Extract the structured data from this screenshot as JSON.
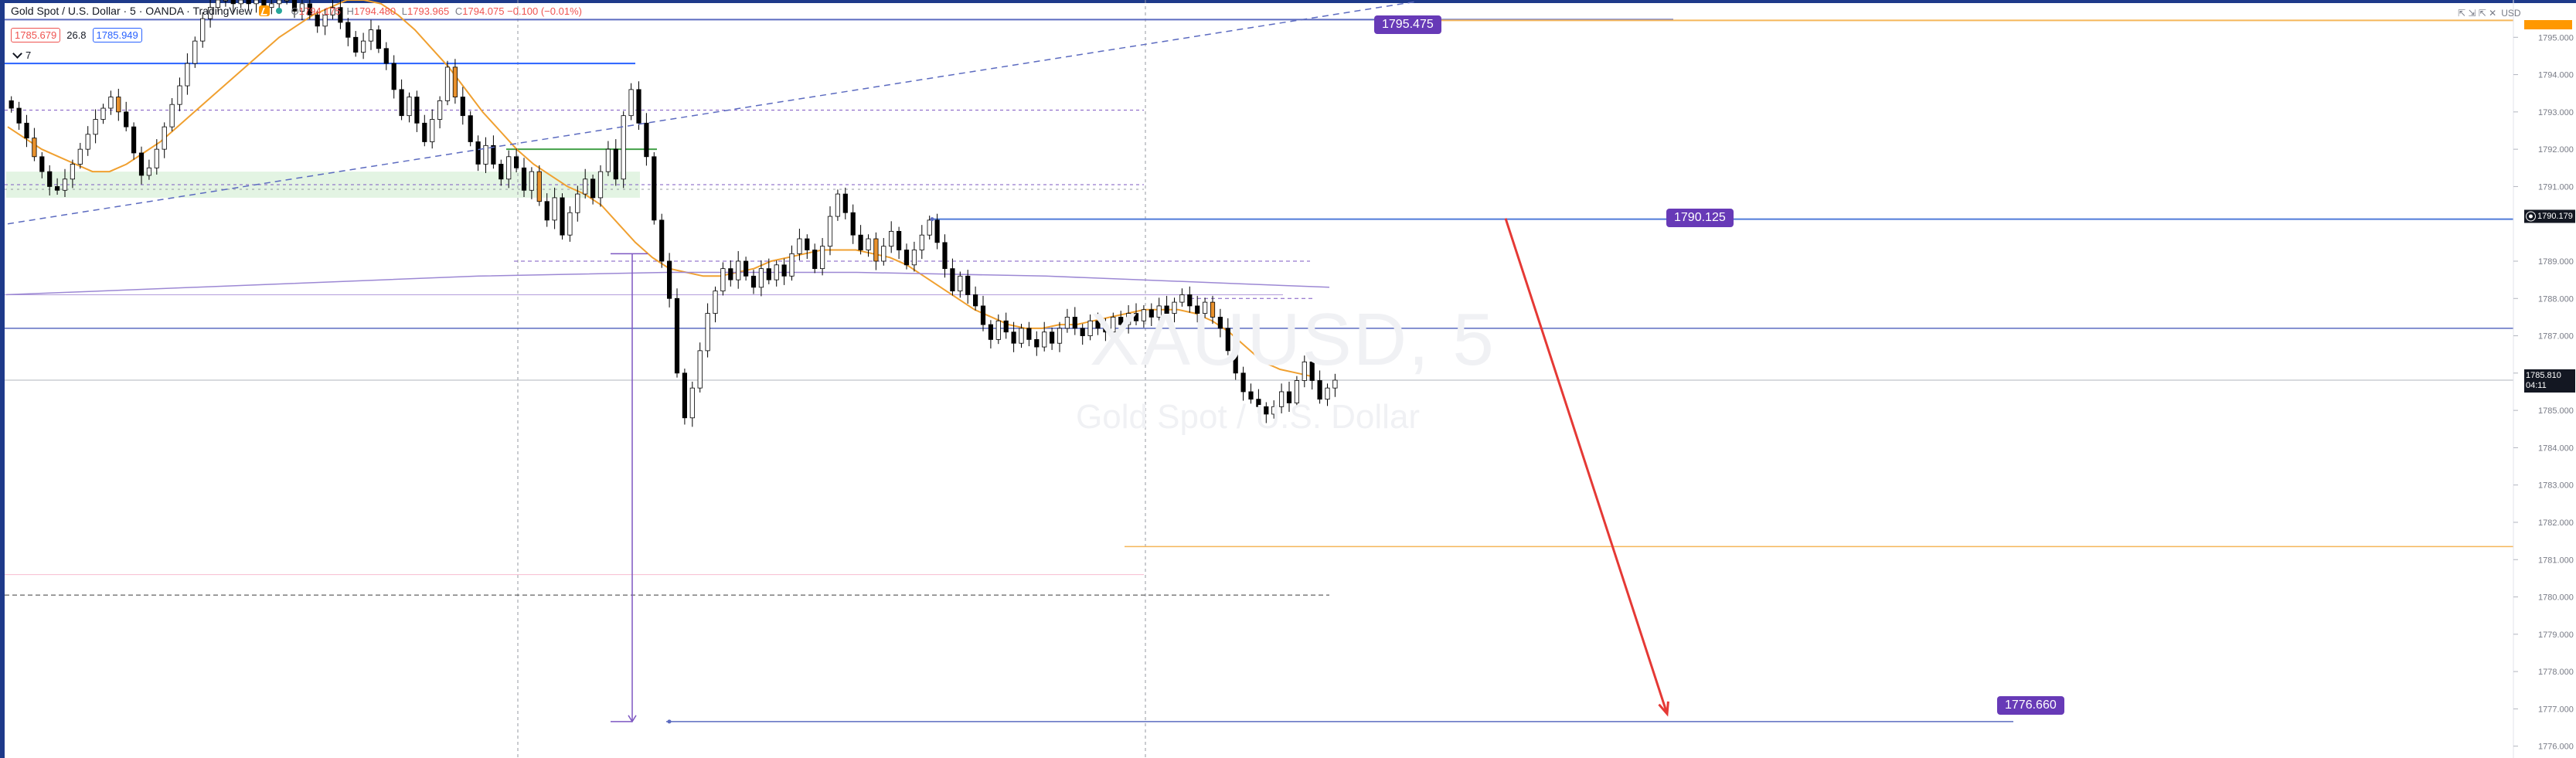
{
  "header": {
    "title": "Gold Spot / U.S. Dollar · 5 · OANDA · TradingView",
    "ohlc": {
      "open_label": "O",
      "open": "1794.175",
      "high_label": "H",
      "high": "1794.480",
      "low_label": "L",
      "low": "1793.965",
      "close_label": "C",
      "close": "1794.075",
      "change": "−0.100 (−0.01%)"
    },
    "bid": "1785.679",
    "spread": "26.8",
    "ask": "1785.949",
    "collapse_count": "7"
  },
  "watermark": {
    "symbol": "XAUUSD, 5",
    "description": "Gold Spot / U.S. Dollar"
  },
  "badges": {
    "upper_level": "1795.475",
    "mid_level": "1790.125",
    "target_level": "1776.660"
  },
  "axis_tags": {
    "marker_price": "1790.179",
    "last_price": "1785.810",
    "countdown": "04:11"
  },
  "top_right": {
    "currency": "USD",
    "icons": "⇱ ⇲ ⇱ ✕"
  },
  "colors": {
    "bull": "#ffffff",
    "bear": "#000000",
    "highlight": "#e8912d",
    "ema": "#f0a030",
    "ma_long": "#9c88d4",
    "level_blue": "#2962ff",
    "arrow": "#e53935",
    "badge": "#673ab7",
    "orange_level": "#f5b65a",
    "zone": "#e3f4e3"
  },
  "chart_data": {
    "type": "candlestick",
    "timeframe": "5",
    "y_axis": {
      "ticks": [
        1795.0,
        1794.0,
        1793.0,
        1792.0,
        1791.0,
        1789.0,
        1788.0,
        1787.0,
        1786.0,
        1785.0,
        1784.0,
        1783.0,
        1782.0,
        1781.0,
        1780.0,
        1779.0,
        1778.0,
        1777.0,
        1776.0
      ],
      "tick_labels": [
        "1795.000",
        "1794.000",
        "1793.000",
        "1792.000",
        "1791.000",
        "1789.000",
        "1788.000",
        "1787.000",
        "1786.000",
        "1785.000",
        "1784.000",
        "1783.000",
        "1782.000",
        "1781.000",
        "1780.000",
        "1779.000",
        "1778.000",
        "1777.000",
        "1776.000"
      ],
      "range": [
        1775.6,
        1796.0
      ]
    },
    "close_series": [
      1793.1,
      1792.7,
      1792.3,
      1791.8,
      1791.4,
      1791.0,
      1790.9,
      1791.2,
      1791.6,
      1792.0,
      1792.4,
      1792.8,
      1793.1,
      1793.4,
      1793.0,
      1792.6,
      1791.9,
      1791.3,
      1791.5,
      1792.0,
      1792.6,
      1793.2,
      1793.7,
      1794.3,
      1794.9,
      1795.5,
      1795.8,
      1796.0,
      1796.0,
      1795.9,
      1796.0,
      1795.9,
      1796.0,
      1795.8,
      1795.9,
      1796.0,
      1796.0,
      1795.7,
      1795.9,
      1795.6,
      1795.3,
      1795.6,
      1795.8,
      1795.4,
      1795.0,
      1794.6,
      1794.9,
      1795.2,
      1794.7,
      1794.3,
      1793.6,
      1792.9,
      1793.4,
      1792.7,
      1792.2,
      1792.8,
      1793.3,
      1794.2,
      1793.4,
      1792.9,
      1792.2,
      1791.6,
      1792.1,
      1791.6,
      1791.2,
      1791.8,
      1791.5,
      1790.9,
      1791.4,
      1790.6,
      1790.1,
      1790.7,
      1789.7,
      1790.3,
      1790.8,
      1791.2,
      1790.7,
      1791.4,
      1792.0,
      1791.2,
      1792.9,
      1793.6,
      1792.7,
      1791.8,
      1790.1,
      1789.0,
      1788.0,
      1786.0,
      1784.8,
      1785.6,
      1786.6,
      1787.6,
      1788.2,
      1788.8,
      1788.5,
      1789.0,
      1788.6,
      1788.3,
      1788.8,
      1788.5,
      1788.9,
      1788.6,
      1789.2,
      1789.6,
      1789.3,
      1788.8,
      1789.4,
      1790.2,
      1790.8,
      1790.3,
      1789.7,
      1789.3,
      1789.6,
      1789.0,
      1789.4,
      1789.8,
      1789.3,
      1788.9,
      1789.3,
      1789.7,
      1790.1,
      1789.5,
      1788.8,
      1788.2,
      1788.6,
      1788.1,
      1787.8,
      1787.3,
      1786.9,
      1787.4,
      1787.1,
      1786.8,
      1787.2,
      1786.9,
      1786.7,
      1787.1,
      1786.8,
      1787.2,
      1787.5,
      1787.2,
      1787.0,
      1787.4,
      1787.2,
      1787.1,
      1787.5,
      1787.3,
      1787.6,
      1787.4,
      1787.7,
      1787.5,
      1787.8,
      1787.6,
      1787.9,
      1788.1,
      1787.8,
      1787.6,
      1787.9,
      1787.5,
      1787.2,
      1786.6,
      1786.0,
      1785.5,
      1785.3,
      1785.1,
      1784.9,
      1785.1,
      1785.5,
      1785.2,
      1785.8,
      1786.3,
      1785.8,
      1785.3,
      1785.6,
      1785.81
    ],
    "series": [
      {
        "name": "EMA",
        "values": [
          1792.6,
          1792.3,
          1792.0,
          1791.8,
          1791.6,
          1791.4,
          1791.4,
          1791.6,
          1791.9,
          1792.2,
          1792.6,
          1793.0,
          1793.4,
          1793.8,
          1794.2,
          1794.6,
          1795.0,
          1795.3,
          1795.6,
          1795.8,
          1796.0,
          1796.0,
          1795.9,
          1795.6,
          1795.2,
          1794.7,
          1794.2,
          1793.6,
          1793.0,
          1792.5,
          1792.0,
          1791.6,
          1791.3,
          1791.0,
          1790.8,
          1790.5,
          1790.0,
          1789.5,
          1789.1,
          1788.8,
          1788.7,
          1788.6,
          1788.6,
          1788.7,
          1788.8,
          1789.0,
          1789.1,
          1789.2,
          1789.3,
          1789.3,
          1789.3,
          1789.2,
          1789.1,
          1788.9,
          1788.6,
          1788.3,
          1788.0,
          1787.7,
          1787.5,
          1787.3,
          1787.2,
          1787.2,
          1787.3,
          1787.3,
          1787.4,
          1787.5,
          1787.6,
          1787.7,
          1787.7,
          1787.7,
          1787.6,
          1787.4,
          1787.1,
          1786.7,
          1786.3,
          1786.1,
          1786.0,
          1785.9
        ]
      },
      {
        "name": "MA",
        "values": [
          1788.1,
          1788.2,
          1788.3,
          1788.4,
          1788.5,
          1788.6,
          1788.65,
          1788.7,
          1788.7,
          1788.7,
          1788.65,
          1788.6,
          1788.5,
          1788.4,
          1788.3
        ]
      }
    ],
    "horizontal_levels": [
      1795.475,
      1790.125,
      1789.0,
      1788.0,
      1787.2,
      1785.81,
      1781.35,
      1780.05,
      1776.66,
      1793.05,
      1791.05,
      1788.1,
      1794.3
    ],
    "zone": {
      "from": 1790.7,
      "to": 1791.4
    },
    "annotations": [
      {
        "type": "trend-line-dashed",
        "from": 1790.0,
        "to": 1795.95
      },
      {
        "type": "arrow-down",
        "from": 1790.125,
        "to": 1776.66
      },
      {
        "type": "measure-vertical",
        "from": 1789.2,
        "to": 1776.66
      }
    ]
  }
}
